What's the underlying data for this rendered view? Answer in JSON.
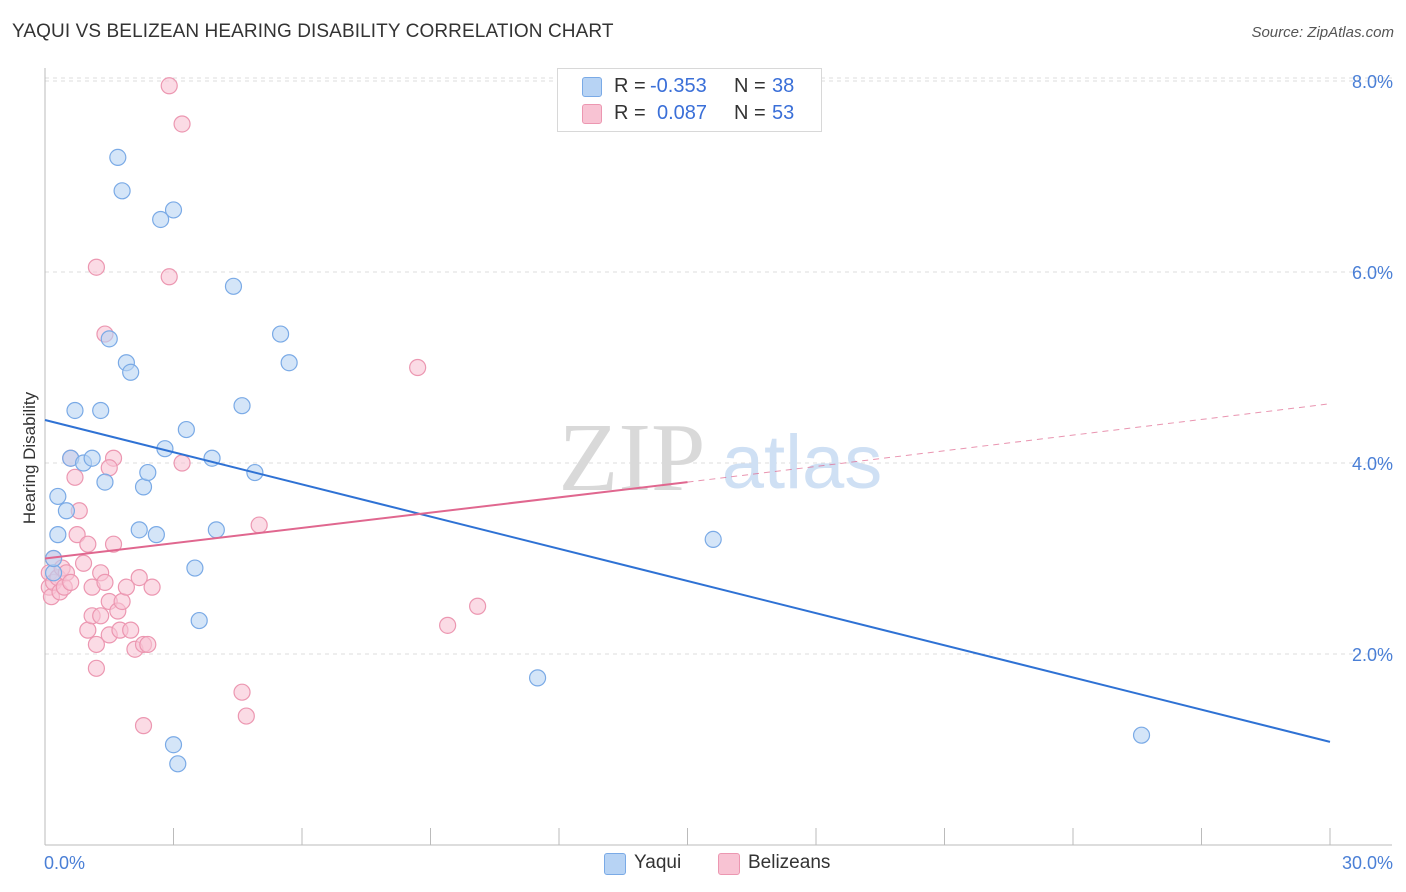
{
  "title": "YAQUI VS BELIZEAN HEARING DISABILITY CORRELATION CHART",
  "source": "Source: ZipAtlas.com",
  "legend": {
    "rows": [
      {
        "r_label": "R =",
        "r_value": "-0.353",
        "n_label": "N =",
        "n_value": "38"
      },
      {
        "r_label": "R =",
        "r_value": "0.087",
        "n_label": "N =",
        "n_value": "53"
      }
    ]
  },
  "bottom_legend": {
    "yaqui": "Yaqui",
    "belizeans": "Belizeans"
  },
  "watermark": {
    "zip": "ZIP",
    "atlas": "atlas"
  },
  "colors": {
    "yaqui_fill": "#b7d3f4",
    "yaqui_stroke": "#7aaae6",
    "yaqui_line": "#2f72d4",
    "belizean_fill": "#f8c3d3",
    "belizean_stroke": "#ec97b1",
    "belizean_line": "#e0678f",
    "axis_label": "#4a7fd6",
    "grid": "#dddddd"
  },
  "chart_data": {
    "type": "scatter",
    "title": "YAQUI VS BELIZEAN HEARING DISABILITY CORRELATION CHART",
    "xlabel": "",
    "ylabel": "Hearing Disability",
    "xlim": [
      0,
      30
    ],
    "ylim": [
      0,
      8.2
    ],
    "x_tick_labels": [
      "0.0%",
      "30.0%"
    ],
    "y_ticks": [
      2,
      4,
      6,
      8
    ],
    "y_tick_labels": [
      "2.0%",
      "4.0%",
      "6.0%",
      "8.0%"
    ],
    "grid": true,
    "legend_position": "top-center",
    "series": [
      {
        "name": "Yaqui",
        "r": -0.353,
        "n": 38,
        "points": [
          [
            0.2,
            2.85
          ],
          [
            0.2,
            3.0
          ],
          [
            0.3,
            3.25
          ],
          [
            0.3,
            3.65
          ],
          [
            0.5,
            3.5
          ],
          [
            0.6,
            4.05
          ],
          [
            0.7,
            4.55
          ],
          [
            0.9,
            4.0
          ],
          [
            1.1,
            4.05
          ],
          [
            1.3,
            4.55
          ],
          [
            1.4,
            3.8
          ],
          [
            1.7,
            7.2
          ],
          [
            1.8,
            6.85
          ],
          [
            1.9,
            5.05
          ],
          [
            1.5,
            5.3
          ],
          [
            2.0,
            4.95
          ],
          [
            2.2,
            3.3
          ],
          [
            2.3,
            3.75
          ],
          [
            2.4,
            3.9
          ],
          [
            2.6,
            3.25
          ],
          [
            2.7,
            6.55
          ],
          [
            2.8,
            4.15
          ],
          [
            3.0,
            6.65
          ],
          [
            3.3,
            4.35
          ],
          [
            3.5,
            2.9
          ],
          [
            3.6,
            2.35
          ],
          [
            3.9,
            4.05
          ],
          [
            4.0,
            3.3
          ],
          [
            4.4,
            5.85
          ],
          [
            4.6,
            4.6
          ],
          [
            4.9,
            3.9
          ],
          [
            5.5,
            5.35
          ],
          [
            5.7,
            5.05
          ],
          [
            3.0,
            1.05
          ],
          [
            3.1,
            0.85
          ],
          [
            11.5,
            1.75
          ],
          [
            15.6,
            3.2
          ],
          [
            25.6,
            1.15
          ]
        ],
        "trend": {
          "x": [
            0,
            30
          ],
          "y": [
            4.45,
            1.08
          ]
        }
      },
      {
        "name": "Belizeans",
        "r": 0.087,
        "n": 53,
        "points": [
          [
            0.1,
            2.7
          ],
          [
            0.1,
            2.85
          ],
          [
            0.15,
            2.6
          ],
          [
            0.2,
            3.0
          ],
          [
            0.2,
            2.75
          ],
          [
            0.3,
            2.8
          ],
          [
            0.35,
            2.65
          ],
          [
            0.4,
            2.9
          ],
          [
            0.45,
            2.7
          ],
          [
            0.5,
            2.85
          ],
          [
            0.6,
            2.75
          ],
          [
            0.6,
            4.05
          ],
          [
            0.7,
            3.85
          ],
          [
            0.75,
            3.25
          ],
          [
            0.8,
            3.5
          ],
          [
            0.9,
            2.95
          ],
          [
            1.0,
            3.15
          ],
          [
            1.0,
            2.25
          ],
          [
            1.1,
            2.4
          ],
          [
            1.1,
            2.7
          ],
          [
            1.2,
            2.1
          ],
          [
            1.2,
            1.85
          ],
          [
            1.3,
            2.85
          ],
          [
            1.3,
            2.4
          ],
          [
            1.4,
            2.75
          ],
          [
            1.5,
            2.2
          ],
          [
            1.5,
            2.55
          ],
          [
            1.6,
            3.15
          ],
          [
            1.7,
            2.45
          ],
          [
            1.75,
            2.25
          ],
          [
            1.8,
            2.55
          ],
          [
            1.9,
            2.7
          ],
          [
            2.0,
            2.25
          ],
          [
            2.1,
            2.05
          ],
          [
            2.2,
            2.8
          ],
          [
            2.3,
            2.1
          ],
          [
            2.4,
            2.1
          ],
          [
            2.5,
            2.7
          ],
          [
            1.2,
            6.05
          ],
          [
            1.4,
            5.35
          ],
          [
            2.9,
            7.95
          ],
          [
            3.2,
            7.55
          ],
          [
            2.9,
            5.95
          ],
          [
            3.2,
            4.0
          ],
          [
            1.6,
            4.05
          ],
          [
            1.5,
            3.95
          ],
          [
            2.3,
            1.25
          ],
          [
            4.6,
            1.6
          ],
          [
            4.7,
            1.35
          ],
          [
            5.0,
            3.35
          ],
          [
            8.7,
            5.0
          ],
          [
            9.4,
            2.3
          ],
          [
            10.1,
            2.5
          ]
        ],
        "trend": {
          "x": [
            0,
            15
          ],
          "y": [
            3.0,
            3.8
          ]
        },
        "trend_extension": {
          "x": [
            15,
            30
          ],
          "y": [
            3.8,
            4.62
          ]
        }
      }
    ]
  }
}
